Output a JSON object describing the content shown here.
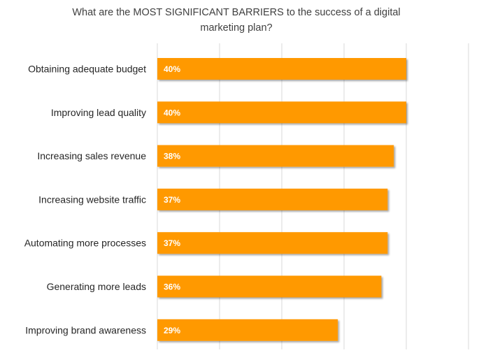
{
  "chart_data": {
    "type": "bar",
    "orientation": "horizontal",
    "title": "What are the MOST SIGNIFICANT  BARRIERS to the success of a digital marketing plan?",
    "title_lines": [
      "What are the MOST SIGNIFICANT  BARRIERS to the success of a digital",
      "marketing plan?"
    ],
    "categories": [
      "Obtaining adequate budget",
      "Improving lead quality",
      "Increasing sales revenue",
      "Increasing website traffic",
      "Automating more processes",
      "Generating more leads",
      "Improving brand awareness"
    ],
    "values": [
      40,
      40,
      38,
      37,
      37,
      36,
      29
    ],
    "data_labels": [
      "40%",
      "40%",
      "38%",
      "37%",
      "37%",
      "36%",
      "29%"
    ],
    "xlim": [
      0,
      50
    ],
    "gridlines": [
      0,
      10,
      20,
      30,
      40,
      50
    ],
    "grid": true,
    "legend": "none",
    "bar_color": "#ff9900",
    "xlabel": "",
    "ylabel": ""
  }
}
